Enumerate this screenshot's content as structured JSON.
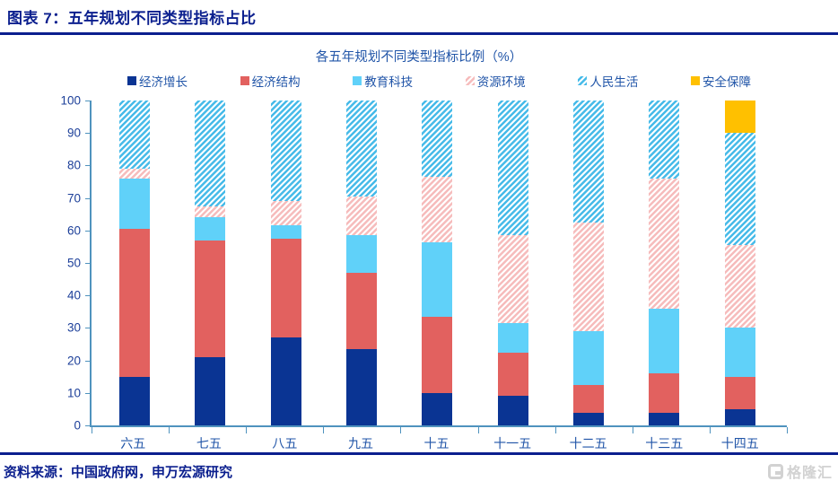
{
  "header": {
    "title": "图表 7：五年规划不同类型指标占比"
  },
  "chart_data": {
    "type": "bar",
    "stacked": true,
    "title": "各五年规划不同类型指标比例（%）",
    "categories": [
      "六五",
      "七五",
      "八五",
      "九五",
      "十五",
      "十一五",
      "十二五",
      "十三五",
      "十四五"
    ],
    "series": [
      {
        "name": "经济增长",
        "color": "#0a3493",
        "pattern": "solid",
        "values": [
          15,
          21,
          27,
          23.5,
          10,
          9,
          4,
          4,
          5
        ]
      },
      {
        "name": "经济结构",
        "color": "#e2615f",
        "pattern": "solid",
        "values": [
          45.5,
          36,
          30.5,
          23.5,
          23.5,
          13.5,
          8.5,
          12,
          10
        ]
      },
      {
        "name": "教育科技",
        "color": "#60d1f9",
        "pattern": "solid",
        "values": [
          15.5,
          7,
          4,
          11.5,
          23,
          9,
          16.5,
          20,
          15
        ]
      },
      {
        "name": "资源环境",
        "color": "#f6bcbc",
        "pattern": "hatch",
        "values": [
          3,
          3.5,
          7.5,
          12,
          20,
          27,
          33.5,
          40,
          25.5
        ]
      },
      {
        "name": "人民生活",
        "color": "#47bbe9",
        "pattern": "hatch",
        "values": [
          21,
          32.5,
          31,
          29.5,
          23.5,
          41.5,
          37.5,
          24,
          34.5
        ]
      },
      {
        "name": "安全保障",
        "color": "#ffc000",
        "pattern": "solid",
        "values": [
          0,
          0,
          0,
          0,
          0,
          0,
          0,
          0,
          10
        ]
      }
    ],
    "ylim": [
      0,
      100
    ],
    "y_tick_step": 10,
    "y_ticks": [
      0,
      10,
      20,
      30,
      40,
      50,
      60,
      70,
      80,
      90,
      100
    ],
    "legend_position": "top",
    "grid": false,
    "axis_color": "#4f93be",
    "label_color": "#2155a8"
  },
  "footer": {
    "source": "资料来源：中国政府网，申万宏源研究",
    "logo_text": "格隆汇"
  }
}
